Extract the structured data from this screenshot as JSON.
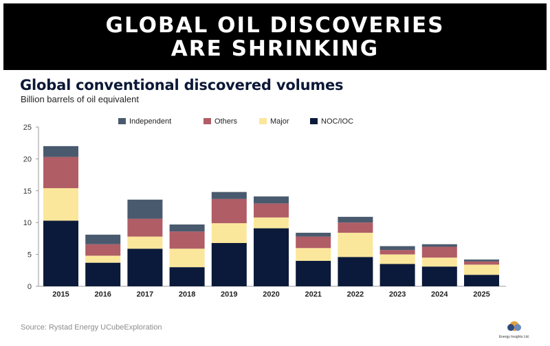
{
  "banner": {
    "title": "GLOBAL OIL DISCOVERIES\nARE SHRINKING"
  },
  "source": "Source: Rystad Energy UCubeExploration",
  "logo": {
    "name": "energy-company-logo",
    "text": "Energy Insights Ltd."
  },
  "colors": {
    "banner_bg": "#000000",
    "NOC/IOC": "#0b1a3a",
    "Major": "#fbe79b",
    "Others": "#b05d66",
    "Independent": "#4a5a6e"
  },
  "chart_data": {
    "type": "bar",
    "stacked": true,
    "title": "Global conventional discovered volumes",
    "subtitle": "Billion barrels of oil equivalent",
    "xlabel": "",
    "ylabel": "",
    "ylim": [
      0,
      25
    ],
    "yticks": [
      0,
      5,
      10,
      15,
      20,
      25
    ],
    "grid": false,
    "legend_position": "top",
    "legend_order": [
      "Independent",
      "Others",
      "Major",
      "NOC/IOC"
    ],
    "categories": [
      "2015",
      "2016",
      "2017",
      "2018",
      "2019",
      "2020",
      "2021",
      "2022",
      "2023",
      "2024",
      "2025"
    ],
    "series": [
      {
        "name": "NOC/IOC",
        "values": [
          10.3,
          3.7,
          5.9,
          3.0,
          6.8,
          9.1,
          4.0,
          4.6,
          3.5,
          3.1,
          1.8
        ]
      },
      {
        "name": "Major",
        "values": [
          5.1,
          1.1,
          1.9,
          2.9,
          3.1,
          1.7,
          2.0,
          3.8,
          1.5,
          1.4,
          1.6
        ]
      },
      {
        "name": "Others",
        "values": [
          4.9,
          1.8,
          2.8,
          2.7,
          3.8,
          2.2,
          1.8,
          1.6,
          0.7,
          1.7,
          0.5
        ]
      },
      {
        "name": "Independent",
        "values": [
          1.7,
          1.5,
          3.0,
          1.1,
          1.1,
          1.1,
          0.6,
          0.9,
          0.6,
          0.4,
          0.3
        ]
      }
    ]
  }
}
